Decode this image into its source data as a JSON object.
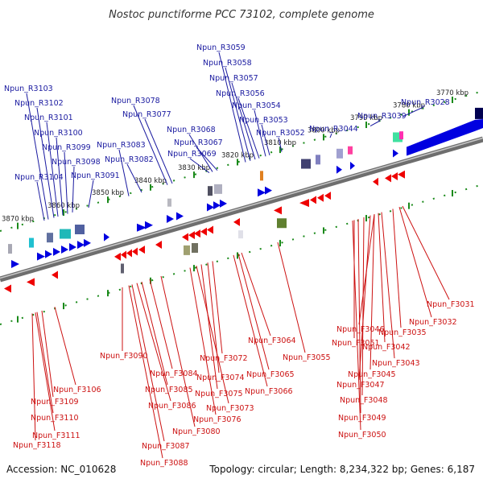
{
  "title": "Nostoc punctiforme PCC 73102, complete genome",
  "footer": {
    "accession": "Accession: NC_010628",
    "summary": "Topology: circular; Length: 8,234,322 bp; Genes: 6,187"
  },
  "colors": {
    "forward": "#0000e0",
    "reverse": "#ee0000",
    "backbone": "#909090",
    "tick": "#1a8a1a",
    "top_label": "#1a1aa0",
    "bottom_label": "#cc1111"
  },
  "ruler_ticks": [
    {
      "label": "3870 kbp"
    },
    {
      "label": "3860 kbp"
    },
    {
      "label": "3850 kbp"
    },
    {
      "label": "3840 kbp"
    },
    {
      "label": "3830 kbp"
    },
    {
      "label": "3820 kbp"
    },
    {
      "label": "3810 kbp"
    },
    {
      "label": "3800 kbp"
    },
    {
      "label": "3790 kbp"
    },
    {
      "label": "3780 kbp"
    },
    {
      "label": "3770 kbp"
    }
  ],
  "top_genes": [
    {
      "name": "Npun_R3059"
    },
    {
      "name": "Npun_R3058"
    },
    {
      "name": "Npun_R3057"
    },
    {
      "name": "Npun_R3056"
    },
    {
      "name": "Npun_R3054"
    },
    {
      "name": "Npun_R3053"
    },
    {
      "name": "Npun_R3052"
    },
    {
      "name": "Npun_R3103"
    },
    {
      "name": "Npun_R3102"
    },
    {
      "name": "Npun_R3101"
    },
    {
      "name": "Npun_R3100"
    },
    {
      "name": "Npun_R3099"
    },
    {
      "name": "Npun_R3098"
    },
    {
      "name": "Npun_R3104"
    },
    {
      "name": "Npun_R3091"
    },
    {
      "name": "Npun_R3078"
    },
    {
      "name": "Npun_R3077"
    },
    {
      "name": "Npun_R3083"
    },
    {
      "name": "Npun_R3082"
    },
    {
      "name": "Npun_R3068"
    },
    {
      "name": "Npun_R3067"
    },
    {
      "name": "Npun_R3069"
    },
    {
      "name": "Npun_R3044"
    },
    {
      "name": "Npun_R3039"
    },
    {
      "name": "Npun_R3028"
    }
  ],
  "bottom_genes": [
    {
      "name": "Npun_F3031"
    },
    {
      "name": "Npun_F3032"
    },
    {
      "name": "Npun_F3035"
    },
    {
      "name": "Npun_F3046"
    },
    {
      "name": "Npun_F3042"
    },
    {
      "name": "Npun_F3051"
    },
    {
      "name": "Npun_F3043"
    },
    {
      "name": "Npun_F3045"
    },
    {
      "name": "Npun_F3047"
    },
    {
      "name": "Npun_F3048"
    },
    {
      "name": "Npun_F3049"
    },
    {
      "name": "Npun_F3050"
    },
    {
      "name": "Npun_F3064"
    },
    {
      "name": "Npun_F3055"
    },
    {
      "name": "Npun_F3065"
    },
    {
      "name": "Npun_F3066"
    },
    {
      "name": "Npun_F3072"
    },
    {
      "name": "Npun_F3074"
    },
    {
      "name": "Npun_F3075"
    },
    {
      "name": "Npun_F3073"
    },
    {
      "name": "Npun_F3076"
    },
    {
      "name": "Npun_F3090"
    },
    {
      "name": "Npun_F3084"
    },
    {
      "name": "Npun_F3085"
    },
    {
      "name": "Npun_F3086"
    },
    {
      "name": "Npun_F3080"
    },
    {
      "name": "Npun_F3087"
    },
    {
      "name": "Npun_F3088"
    },
    {
      "name": "Npun_F3106"
    },
    {
      "name": "Npun_F3109"
    },
    {
      "name": "Npun_F3110"
    },
    {
      "name": "Npun_F3111"
    },
    {
      "name": "Npun_F3118"
    }
  ]
}
